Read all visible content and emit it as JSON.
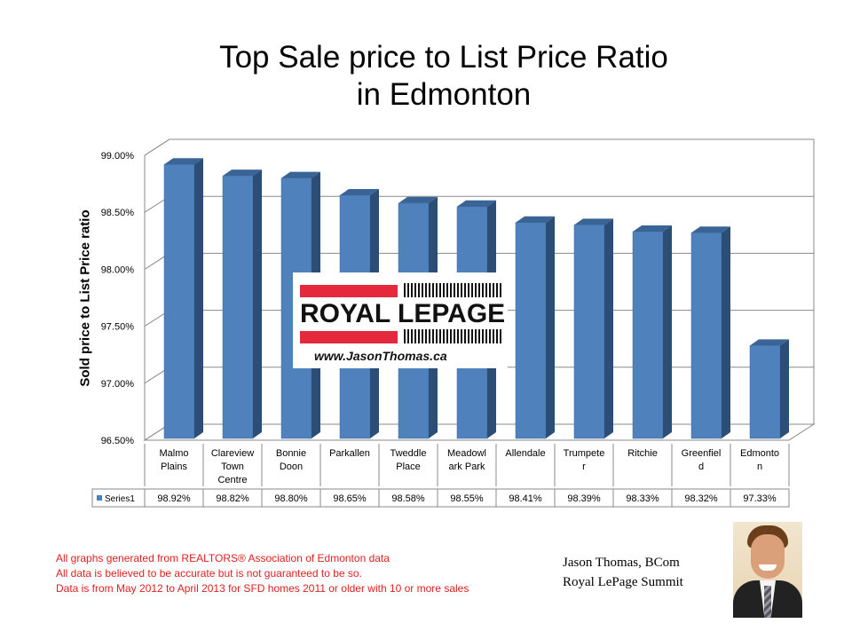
{
  "title_lines": [
    "Top Sale price to List Price Ratio",
    "in Edmonton"
  ],
  "logo": {
    "brand": "ROYAL LEPAGE",
    "url": "www.JasonThomas.ca",
    "colors": {
      "red": "#e5293c",
      "black": "#111111"
    }
  },
  "footnote_lines": [
    "All graphs generated from REALTORS® Association of Edmonton data",
    "All data is believed to be accurate but is not guaranteed to be so.",
    "Data is from May 2012  to April 2013  for SFD homes 2011  or older with 10 or more sales"
  ],
  "author": {
    "name": "Jason Thomas, BCom",
    "company": "Royal LePage Summit"
  },
  "colors": {
    "bar_front": "#4f81bd",
    "bar_side": "#2c4d75",
    "bar_top": "#3a6496",
    "footnote": "#e02020"
  },
  "chart_data": {
    "type": "bar",
    "title": "Top Sale price to List Price Ratio in Edmonton",
    "ylabel": "Sold price to List Price ratio",
    "xlabel": "",
    "categories": [
      "Malmo Plains",
      "Clareview Town Centre",
      "Bonnie Doon",
      "Parkallen",
      "Tweddle Place",
      "Meadowlark Park",
      "Allendale",
      "Trumpeter",
      "Ritchie",
      "Greenfield",
      "Edmonton"
    ],
    "category_label_lines": [
      [
        "Malmo",
        "Plains"
      ],
      [
        "Clareview",
        "Town",
        "Centre"
      ],
      [
        "Bonnie",
        "Doon"
      ],
      [
        "Parkallen"
      ],
      [
        "Tweddle",
        "Place"
      ],
      [
        "Meadowl",
        "ark Park"
      ],
      [
        "Allendale"
      ],
      [
        "Trumpete",
        "r"
      ],
      [
        "Ritchie"
      ],
      [
        "Greenfiel",
        "d"
      ],
      [
        "Edmonto",
        "n"
      ]
    ],
    "series": [
      {
        "name": "Series1",
        "values": [
          98.92,
          98.82,
          98.8,
          98.65,
          98.58,
          98.55,
          98.41,
          98.39,
          98.33,
          98.32,
          97.33
        ],
        "value_labels": [
          "98.92%",
          "98.82%",
          "98.80%",
          "98.65%",
          "98.58%",
          "98.55%",
          "98.41%",
          "98.39%",
          "98.33%",
          "98.32%",
          "97.33%"
        ]
      }
    ],
    "ylim": [
      96.5,
      99.0
    ],
    "yticks": [
      96.5,
      97.0,
      97.5,
      98.0,
      98.5,
      99.0
    ],
    "ytick_labels": [
      "96.50%",
      "97.00%",
      "97.50%",
      "98.00%",
      "98.50%",
      "99.00%"
    ],
    "grid": true,
    "legend": "data-table",
    "style": "3d-column"
  }
}
